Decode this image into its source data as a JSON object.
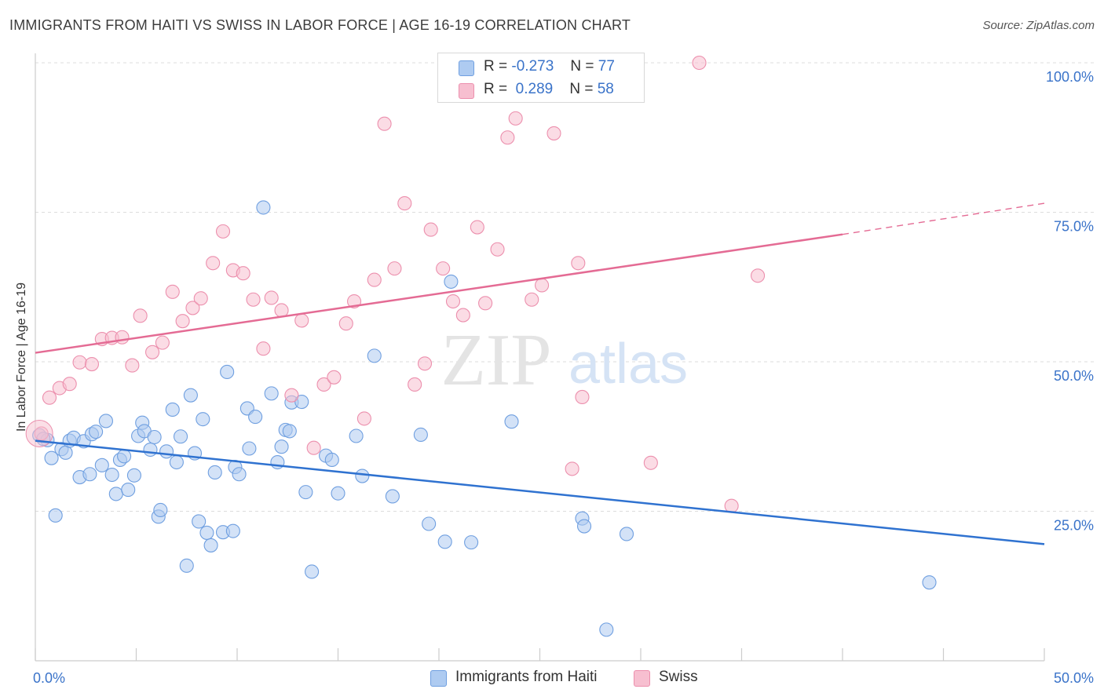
{
  "title": "IMMIGRANTS FROM HAITI VS SWISS IN LABOR FORCE | AGE 16-19 CORRELATION CHART",
  "source": "Source: ZipAtlas.com",
  "watermark": {
    "zip": "ZIP",
    "atlas": "atlas"
  },
  "legend": {
    "rows": [
      {
        "r_label": "R =",
        "r_value": "-0.273",
        "n_label": "N =",
        "n_value": "77"
      },
      {
        "r_label": "R =",
        "r_value": " 0.289",
        "n_label": "N =",
        "n_value": "58"
      }
    ]
  },
  "colors": {
    "haiti_fill": "#aecbf1",
    "haiti_stroke": "#6f9fe0",
    "haiti_line": "#2f72d0",
    "swiss_fill": "#f7bfd0",
    "swiss_stroke": "#ec8fad",
    "swiss_line": "#e46b94",
    "tick_label": "#3a73c9",
    "grid": "#dddddd"
  },
  "chart_data": {
    "type": "scatter",
    "title": "IMMIGRANTS FROM HAITI VS SWISS IN LABOR FORCE | AGE 16-19 CORRELATION CHART",
    "xlabel": "",
    "ylabel": "In Labor Force | Age 16-19",
    "xlim": [
      0,
      50
    ],
    "ylim": [
      0,
      105
    ],
    "x_tick_labels": [
      "0.0%",
      "50.0%"
    ],
    "y_tick_labels": [
      "100.0%",
      "75.0%",
      "50.0%",
      "25.0%"
    ],
    "y_ticks": [
      100,
      75,
      50,
      25
    ],
    "grid": true,
    "legend_position": "top-center",
    "series": [
      {
        "name": "Immigrants from Haiti",
        "r": -0.273,
        "n": 77,
        "trend": {
          "x": [
            0,
            50
          ],
          "y": [
            36.8,
            19.5
          ]
        },
        "points": [
          [
            0.2,
            37.7
          ],
          [
            0.6,
            36.9
          ],
          [
            0.8,
            33.9
          ],
          [
            1.0,
            24.3
          ],
          [
            1.3,
            35.4
          ],
          [
            1.5,
            34.8
          ],
          [
            1.7,
            36.8
          ],
          [
            1.9,
            37.3
          ],
          [
            2.2,
            30.7
          ],
          [
            2.4,
            36.7
          ],
          [
            2.7,
            31.2
          ],
          [
            2.8,
            37.9
          ],
          [
            3.0,
            38.3
          ],
          [
            3.3,
            32.7
          ],
          [
            3.5,
            40.1
          ],
          [
            3.8,
            31.1
          ],
          [
            4.0,
            27.9
          ],
          [
            4.2,
            33.6
          ],
          [
            4.4,
            34.2
          ],
          [
            4.6,
            28.6
          ],
          [
            4.9,
            31.0
          ],
          [
            5.1,
            37.6
          ],
          [
            5.3,
            39.8
          ],
          [
            5.4,
            38.4
          ],
          [
            5.7,
            35.3
          ],
          [
            5.9,
            37.4
          ],
          [
            6.1,
            24.1
          ],
          [
            6.2,
            25.2
          ],
          [
            6.5,
            35.0
          ],
          [
            6.8,
            42.0
          ],
          [
            7.0,
            33.2
          ],
          [
            7.2,
            37.5
          ],
          [
            7.5,
            15.9
          ],
          [
            7.7,
            44.4
          ],
          [
            7.9,
            34.7
          ],
          [
            8.1,
            23.3
          ],
          [
            8.3,
            40.4
          ],
          [
            8.5,
            21.4
          ],
          [
            8.7,
            19.3
          ],
          [
            8.9,
            31.5
          ],
          [
            9.3,
            21.5
          ],
          [
            9.5,
            48.3
          ],
          [
            9.8,
            21.7
          ],
          [
            9.9,
            32.4
          ],
          [
            10.1,
            31.2
          ],
          [
            10.5,
            42.2
          ],
          [
            10.6,
            35.5
          ],
          [
            10.9,
            40.8
          ],
          [
            11.3,
            75.8
          ],
          [
            11.7,
            44.7
          ],
          [
            12.0,
            33.2
          ],
          [
            12.2,
            35.8
          ],
          [
            12.4,
            38.6
          ],
          [
            12.6,
            38.4
          ],
          [
            12.7,
            43.2
          ],
          [
            13.2,
            43.3
          ],
          [
            13.4,
            28.2
          ],
          [
            13.7,
            14.9
          ],
          [
            14.4,
            34.3
          ],
          [
            14.7,
            33.6
          ],
          [
            15.0,
            28.0
          ],
          [
            15.9,
            37.6
          ],
          [
            16.2,
            30.9
          ],
          [
            16.8,
            51.0
          ],
          [
            17.7,
            27.5
          ],
          [
            19.1,
            37.8
          ],
          [
            19.5,
            22.9
          ],
          [
            20.3,
            19.9
          ],
          [
            20.6,
            63.4
          ],
          [
            21.6,
            19.8
          ],
          [
            23.6,
            40.0
          ],
          [
            27.1,
            23.8
          ],
          [
            27.2,
            22.5
          ],
          [
            28.3,
            5.2
          ],
          [
            29.3,
            21.2
          ],
          [
            44.3,
            13.1
          ],
          [
            0.4,
            37.1
          ]
        ]
      },
      {
        "name": "Swiss",
        "r": 0.289,
        "n": 58,
        "trend": {
          "x": [
            0,
            40
          ],
          "y": [
            51.5,
            71.3
          ]
        },
        "trend_dashed": {
          "x": [
            40,
            50
          ],
          "y": [
            71.3,
            76.5
          ]
        },
        "points": [
          [
            0.3,
            38.0
          ],
          [
            0.7,
            44.0
          ],
          [
            1.2,
            45.6
          ],
          [
            1.7,
            46.3
          ],
          [
            2.2,
            49.9
          ],
          [
            2.8,
            49.6
          ],
          [
            3.3,
            53.8
          ],
          [
            3.8,
            54.0
          ],
          [
            4.3,
            54.1
          ],
          [
            4.8,
            49.4
          ],
          [
            5.2,
            57.7
          ],
          [
            5.8,
            51.6
          ],
          [
            6.3,
            53.2
          ],
          [
            6.8,
            61.7
          ],
          [
            7.3,
            56.8
          ],
          [
            7.8,
            59.0
          ],
          [
            8.2,
            60.6
          ],
          [
            8.8,
            66.5
          ],
          [
            9.3,
            71.8
          ],
          [
            9.8,
            65.3
          ],
          [
            10.3,
            64.8
          ],
          [
            10.8,
            60.4
          ],
          [
            11.3,
            52.2
          ],
          [
            11.7,
            60.7
          ],
          [
            12.2,
            58.6
          ],
          [
            12.7,
            44.4
          ],
          [
            13.2,
            56.9
          ],
          [
            13.8,
            35.6
          ],
          [
            14.3,
            46.2
          ],
          [
            14.8,
            47.4
          ],
          [
            15.4,
            56.4
          ],
          [
            15.8,
            60.1
          ],
          [
            16.3,
            40.5
          ],
          [
            16.8,
            63.7
          ],
          [
            17.3,
            89.8
          ],
          [
            17.8,
            65.6
          ],
          [
            18.3,
            76.5
          ],
          [
            18.8,
            46.2
          ],
          [
            19.3,
            49.7
          ],
          [
            19.6,
            72.1
          ],
          [
            20.2,
            65.6
          ],
          [
            20.7,
            60.1
          ],
          [
            21.2,
            57.8
          ],
          [
            21.9,
            72.5
          ],
          [
            22.3,
            59.8
          ],
          [
            22.9,
            68.8
          ],
          [
            23.4,
            87.5
          ],
          [
            23.8,
            90.7
          ],
          [
            24.6,
            60.4
          ],
          [
            25.1,
            62.8
          ],
          [
            25.7,
            88.2
          ],
          [
            26.6,
            32.1
          ],
          [
            26.9,
            66.5
          ],
          [
            27.1,
            44.1
          ],
          [
            30.5,
            33.1
          ],
          [
            34.5,
            25.9
          ],
          [
            35.8,
            64.4
          ],
          [
            32.9,
            100.0
          ]
        ]
      }
    ]
  },
  "bottom_legend": [
    {
      "label": "Immigrants from Haiti"
    },
    {
      "label": "Swiss"
    }
  ]
}
